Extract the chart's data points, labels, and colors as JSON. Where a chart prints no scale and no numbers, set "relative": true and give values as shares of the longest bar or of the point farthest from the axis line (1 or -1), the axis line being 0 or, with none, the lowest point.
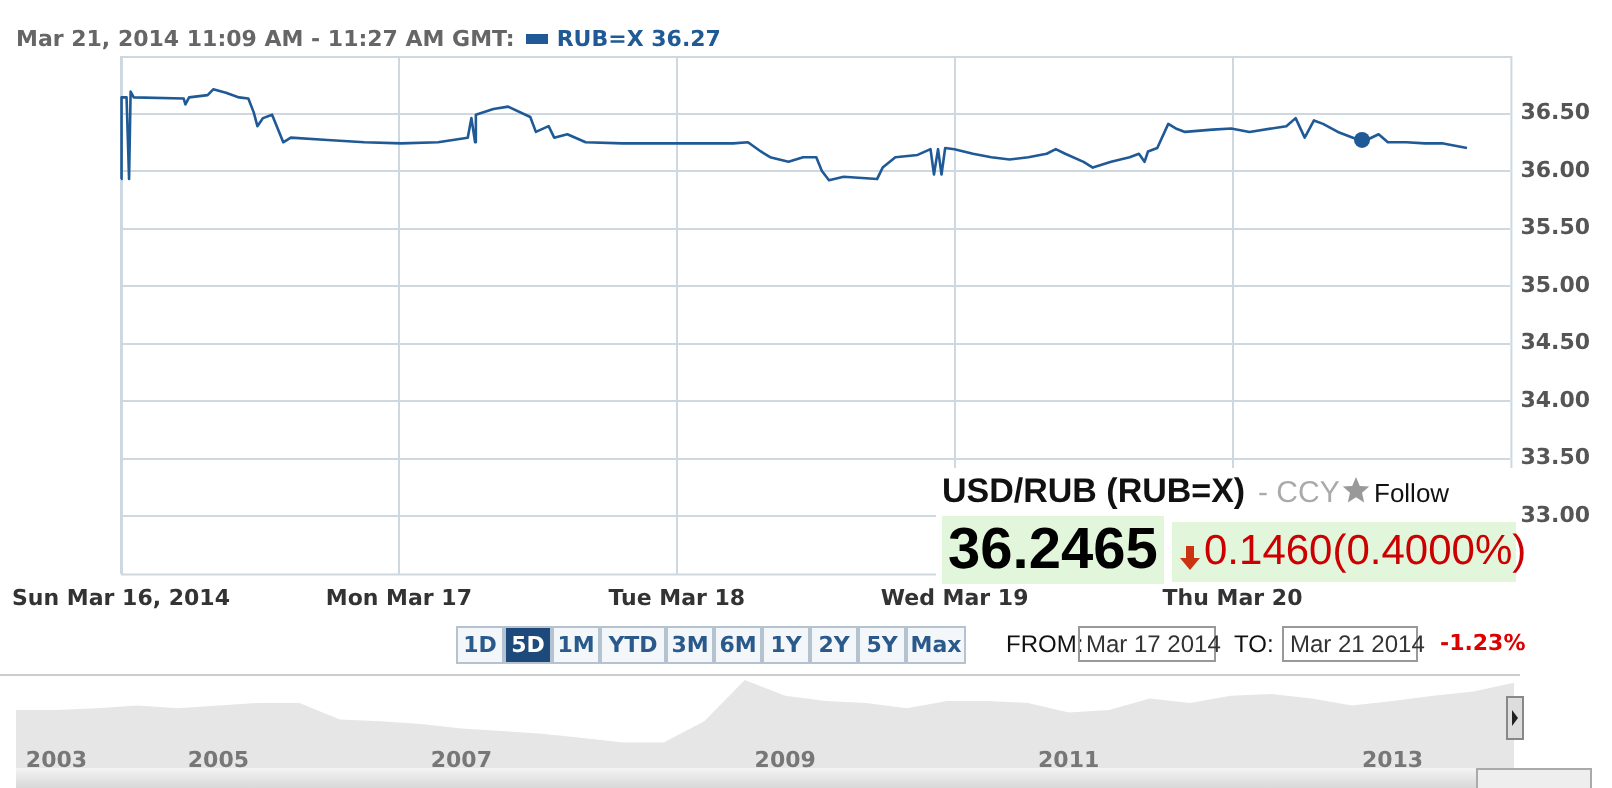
{
  "chart_data": [
    {
      "type": "line",
      "title": "Mar 21, 2014 11:09 AM - 11:27 AM GMT:",
      "x": [
        "2014-03-16T00:00",
        "2014-03-16T00:03",
        "2014-03-16T00:29",
        "2014-03-16T00:42",
        "2014-03-16T00:50",
        "2014-03-16T01:06",
        "2014-03-16T05:25",
        "2014-03-16T05:34",
        "2014-03-16T05:53",
        "2014-03-16T07:29",
        "2014-03-16T07:58",
        "2014-03-16T09:04",
        "2014-03-16T10:12",
        "2014-03-16T11:00",
        "2014-03-16T11:28",
        "2014-03-16T11:47",
        "2014-03-16T12:16",
        "2014-03-16T13:03",
        "2014-03-16T13:32",
        "2014-03-16T14:01",
        "2014-03-16T14:40",
        "2014-03-16T17:50",
        "2014-03-16T21:01",
        "2014-03-17T00:13",
        "2014-03-17T03:23",
        "2014-03-17T05:57",
        "2014-03-17T06:16",
        "2014-03-17T06:35",
        "2014-03-17T06:39",
        "2014-03-17T08:10",
        "2014-03-17T09:26",
        "2014-03-17T11:21",
        "2014-03-17T11:50",
        "2014-03-17T12:56",
        "2014-03-17T13:25",
        "2014-03-17T14:33",
        "2014-03-17T16:08",
        "2014-03-17T19:19",
        "2014-03-18T00:06",
        "2014-03-18T04:52",
        "2014-03-18T06:09",
        "2014-03-18T07:16",
        "2014-03-18T08:04",
        "2014-03-18T09:39",
        "2014-03-18T10:55",
        "2014-03-18T12:03",
        "2014-03-18T12:32",
        "2014-03-18T13:09",
        "2014-03-18T14:25",
        "2014-03-18T17:18",
        "2014-03-18T17:47",
        "2014-03-18T18:53",
        "2014-03-18T20:48",
        "2014-03-18T21:55",
        "2014-03-18T22:13",
        "2014-03-18T22:34",
        "2014-03-18T22:52",
        "2014-03-18T23:11",
        "2014-03-18T23:59",
        "2014-03-19T01:35",
        "2014-03-19T03:10",
        "2014-03-19T04:45",
        "2014-03-19T06:22",
        "2014-03-19T07:57",
        "2014-03-19T08:44",
        "2014-03-19T09:33",
        "2014-03-19T11:08",
        "2014-03-19T11:56",
        "2014-03-19T13:31",
        "2014-03-19T15:07",
        "2014-03-19T15:55",
        "2014-03-19T16:24",
        "2014-03-19T16:42",
        "2014-03-19T17:30",
        "2014-03-19T18:27",
        "2014-03-19T19:06",
        "2014-03-19T19:54",
        "2014-03-19T22:16",
        "2014-03-19T23:53",
        "2014-03-20T01:28",
        "2014-03-20T04:39",
        "2014-03-20T05:27",
        "2014-03-20T06:14",
        "2014-03-20T07:02",
        "2014-03-20T07:49",
        "2014-03-20T09:06",
        "2014-03-20T10:24",
        "2014-03-20T11:11",
        "2014-03-20T12:37",
        "2014-03-20T13:25",
        "2014-03-20T15:01",
        "2014-03-20T16:36",
        "2014-03-20T18:12",
        "2014-03-20T20:15"
      ],
      "series": [
        {
          "name": "RUB=X 36.27",
          "color": "#1f5a96",
          "values": [
            35.93,
            36.64,
            36.64,
            35.93,
            36.69,
            36.64,
            36.63,
            36.58,
            36.64,
            36.66,
            36.71,
            36.68,
            36.64,
            36.63,
            36.51,
            36.39,
            36.46,
            36.49,
            36.37,
            36.25,
            36.29,
            36.27,
            36.25,
            36.24,
            36.25,
            36.29,
            36.46,
            36.25,
            36.49,
            36.54,
            36.56,
            36.47,
            36.34,
            36.39,
            36.29,
            36.32,
            36.25,
            36.24,
            36.24,
            36.24,
            36.25,
            36.17,
            36.12,
            36.08,
            36.12,
            36.12,
            36.0,
            35.92,
            35.95,
            35.93,
            36.03,
            36.12,
            36.14,
            36.19,
            35.97,
            36.19,
            35.97,
            36.2,
            36.19,
            36.15,
            36.12,
            36.1,
            36.12,
            36.15,
            36.19,
            36.15,
            36.08,
            36.03,
            36.08,
            36.12,
            36.15,
            36.08,
            36.17,
            36.2,
            36.41,
            36.37,
            36.34,
            36.36,
            36.37,
            36.34,
            36.39,
            36.46,
            36.29,
            36.44,
            36.41,
            36.34,
            36.29,
            36.25,
            36.32,
            36.25,
            36.25,
            36.24,
            36.24,
            36.2
          ]
        },
        {
          "type": "scatter",
          "color": "#1f5a96",
          "x": [
            "2014-03-20T11:11"
          ],
          "values": [
            36.27
          ]
        }
      ],
      "xlim": [
        "2014-03-16T00:00",
        "2014-03-21T00:00"
      ],
      "xticks": [
        {
          "value": "2014-03-16T00:00",
          "label": "Sun Mar 16, 2014"
        },
        {
          "value": "2014-03-17T00:00",
          "label": "Mon Mar 17"
        },
        {
          "value": "2014-03-18T00:00",
          "label": "Tue Mar 18"
        },
        {
          "value": "2014-03-19T00:00",
          "label": "Wed Mar 19"
        },
        {
          "value": "2014-03-20T00:00",
          "label": "Thu Mar 20"
        }
      ],
      "ylim": [
        32.5,
        37
      ],
      "yticks": [
        {
          "value": 33,
          "label": "33.00"
        },
        {
          "value": 33.5,
          "label": "33.50"
        },
        {
          "value": 34,
          "label": "34.00"
        },
        {
          "value": 34.5,
          "label": "34.50"
        },
        {
          "value": 35,
          "label": "35.00"
        },
        {
          "value": 35.5,
          "label": "35.50"
        },
        {
          "value": 36,
          "label": "36.00"
        },
        {
          "value": 36.5,
          "label": "36.50"
        }
      ],
      "grid": true,
      "legend": "top left",
      "annotations": [
        "USD/RUB (RUB=X)",
        "- CCY",
        "Follow",
        "36.2465",
        "0.1460",
        "(0.4000%)",
        "1D",
        "5D",
        "1M",
        "YTD",
        "3M",
        "6M",
        "1Y",
        "2Y",
        "5Y",
        "Max",
        "FROM:",
        "Mar 17 2014",
        "TO:",
        "Mar 21 2014",
        "-1.23%"
      ]
    },
    {
      "type": "area",
      "relative": true,
      "color": "#e6e6e6",
      "grid": false,
      "legend": false,
      "categories": [
        null,
        "2003",
        null,
        null,
        null,
        "2005",
        null,
        null,
        null,
        null,
        null,
        "2007",
        null,
        null,
        null,
        null,
        null,
        null,
        null,
        "2009",
        null,
        null,
        null,
        null,
        null,
        null,
        "2011",
        null,
        null,
        null,
        null,
        null,
        null,
        null,
        "2013",
        null,
        null,
        null
      ],
      "values": [
        0.66,
        0.66,
        0.68,
        0.71,
        0.68,
        0.71,
        0.74,
        0.74,
        0.55,
        0.53,
        0.5,
        0.45,
        0.42,
        0.39,
        0.34,
        0.29,
        0.29,
        0.53,
        1.0,
        0.82,
        0.76,
        0.74,
        0.68,
        0.76,
        0.76,
        0.74,
        0.63,
        0.66,
        0.79,
        0.74,
        0.82,
        0.84,
        0.79,
        0.71,
        0.76,
        0.82,
        0.87,
        0.97
      ]
    }
  ]
}
